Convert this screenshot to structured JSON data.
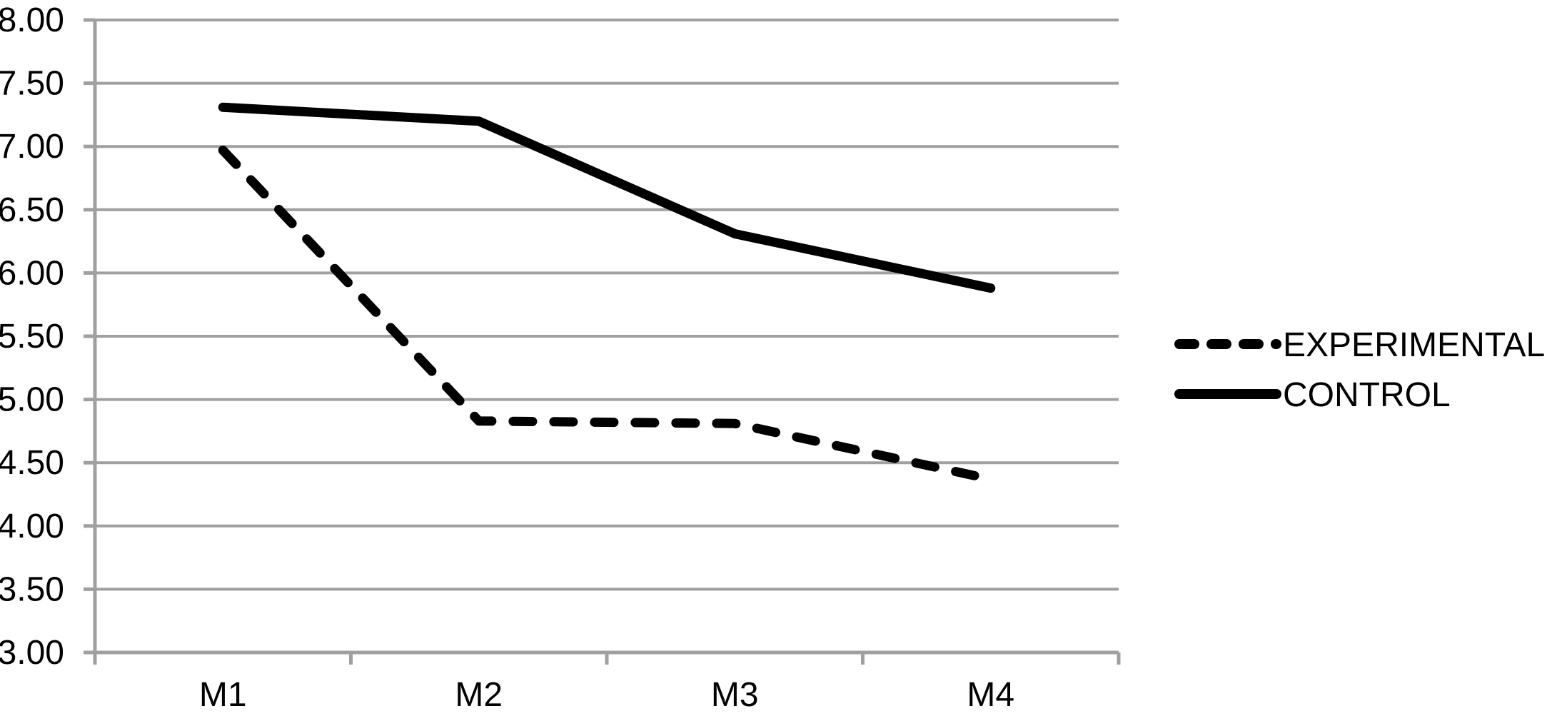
{
  "chart_data": {
    "type": "line",
    "title": "",
    "xlabel": "",
    "ylabel": "",
    "categories": [
      "M1",
      "M2",
      "M3",
      "M4"
    ],
    "series": [
      {
        "name": "EXPERIMENTAL",
        "line_style": "dashed",
        "values": [
          6.97,
          4.83,
          4.81,
          4.37
        ]
      },
      {
        "name": "CONTROL",
        "line_style": "solid",
        "values": [
          7.31,
          7.2,
          6.31,
          5.88
        ]
      }
    ],
    "ylim": [
      3.0,
      8.0
    ],
    "ytick_step": 0.5,
    "ytick_values": [
      8.0,
      7.5,
      7.0,
      6.5,
      6.0,
      5.5,
      5.0,
      4.5,
      4.0,
      3.5,
      3.0
    ],
    "ytick_labels": [
      "8.00",
      "7.50",
      "7.00",
      "6.50",
      "6.00",
      "5.50",
      "5.00",
      "4.50",
      "4.00",
      "3.50",
      "3.00"
    ],
    "grid": true,
    "legend_position": "right",
    "colors": {
      "series_line": "#000000",
      "grid": "#a0a0a0",
      "axis": "#a0a0a0",
      "text": "#000000",
      "background": "#ffffff"
    }
  }
}
